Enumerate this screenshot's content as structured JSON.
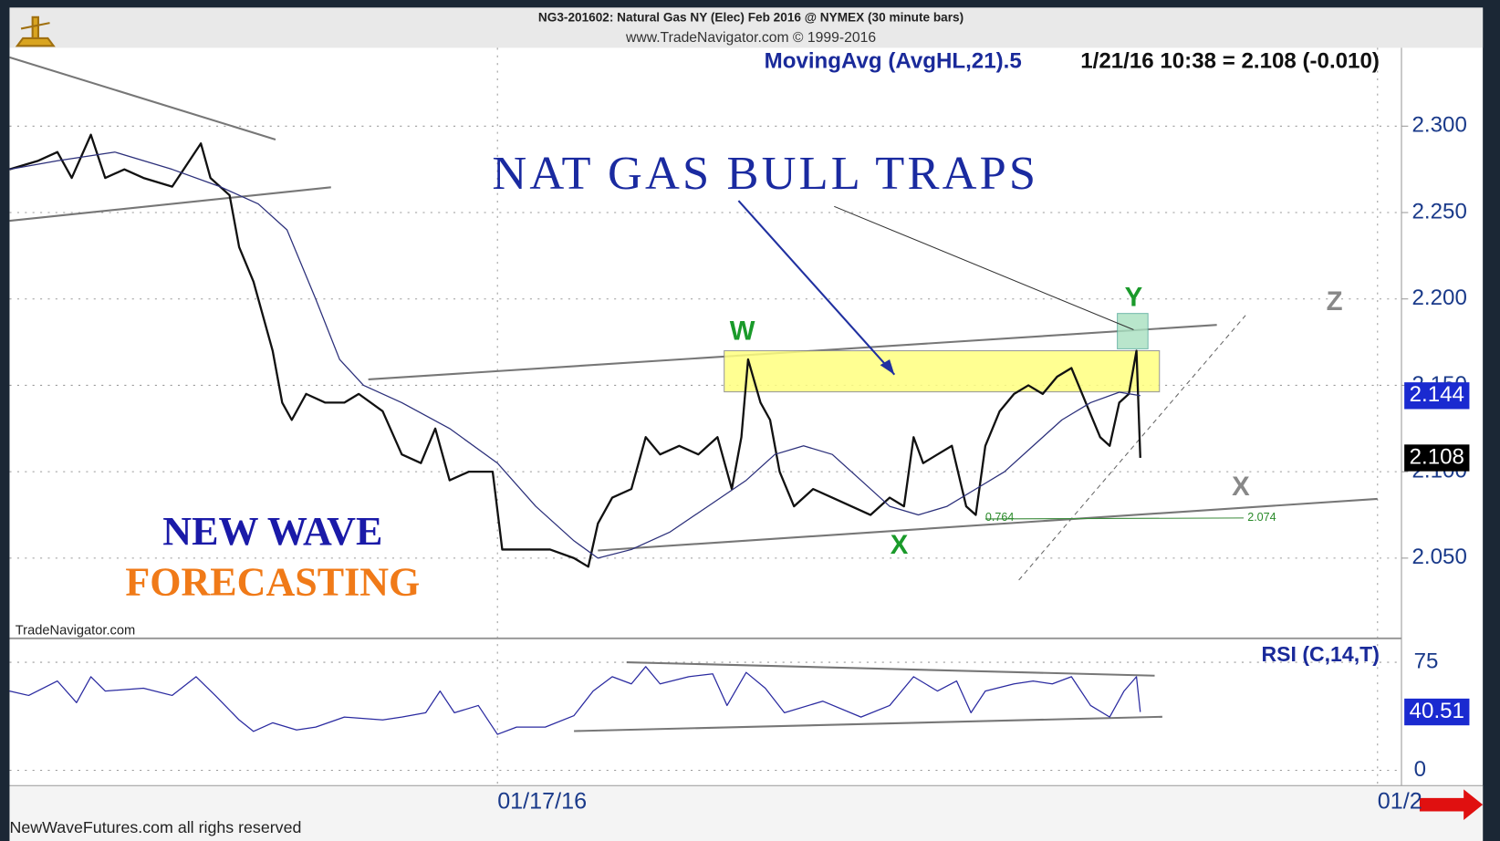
{
  "chart_data": {
    "type": "line",
    "title": "NG3-201602:  Natural Gas NY (Elec) Feb 2016 @ NYMEX  (30 minute bars)",
    "subtitle": "www.TradeNavigator.com © 1999-2016",
    "quote": "1/21/16 10:38 = 2.108 (-0.010)",
    "headline": "NAT GAS BULL TRAPS",
    "brand": [
      "NEW WAVE",
      "FORECASTING"
    ],
    "source": "TradeNavigator.com",
    "footer": "NewWaveFutures.com all righs reserved",
    "wave_labels": [
      "W",
      "X",
      "Y",
      "X",
      "Z"
    ],
    "fib_labels": [
      "0.764",
      "2.074"
    ],
    "xlim": [
      1,
      146
    ],
    "xticks": [
      {
        "value": 52,
        "label": "01/17/16"
      },
      {
        "value": 144,
        "label": "01/2"
      }
    ],
    "ylim": [
      2.0,
      2.35
    ],
    "yticks": [
      {
        "value": 2.3,
        "label": "2.300"
      },
      {
        "value": 2.25,
        "label": "2.250"
      },
      {
        "value": 2.2,
        "label": "2.200"
      },
      {
        "value": 2.15,
        "label": "2.150"
      },
      {
        "value": 2.1,
        "label": "2.100"
      },
      {
        "value": 2.05,
        "label": "2.050"
      }
    ],
    "grid": true,
    "series": [
      {
        "color": "#111111",
        "x": [
          1,
          4,
          6,
          7.5,
          9.5,
          11,
          13,
          15,
          18,
          21,
          22,
          24,
          25,
          26.5,
          27.5,
          28.5,
          29.5,
          30.5,
          32,
          34,
          36,
          37.5,
          40,
          42,
          44,
          45.5,
          47,
          49,
          51.5,
          52.5,
          55,
          57.5,
          60,
          61.5,
          62.5,
          64,
          66,
          67.5,
          69,
          71,
          73,
          75,
          76.5,
          77.5,
          78.2,
          79.5,
          80.5,
          81.5,
          83,
          85,
          87,
          89,
          91,
          93,
          94.5,
          95.5,
          96.5,
          98,
          99.5,
          101,
          102,
          103,
          104.5,
          106,
          107.5,
          109,
          110.5,
          112,
          113.5,
          115,
          116,
          117,
          118,
          118.8,
          119.2
        ],
        "values": [
          2.275,
          2.28,
          2.285,
          2.27,
          2.295,
          2.27,
          2.275,
          2.27,
          2.265,
          2.29,
          2.27,
          2.26,
          2.23,
          2.21,
          2.19,
          2.17,
          2.14,
          2.13,
          2.145,
          2.14,
          2.14,
          2.145,
          2.135,
          2.11,
          2.105,
          2.125,
          2.095,
          2.1,
          2.1,
          2.055,
          2.055,
          2.055,
          2.05,
          2.045,
          2.07,
          2.085,
          2.09,
          2.12,
          2.11,
          2.115,
          2.11,
          2.12,
          2.09,
          2.12,
          2.165,
          2.14,
          2.13,
          2.1,
          2.08,
          2.09,
          2.085,
          2.08,
          2.075,
          2.085,
          2.08,
          2.12,
          2.105,
          2.11,
          2.115,
          2.08,
          2.075,
          2.115,
          2.135,
          2.145,
          2.15,
          2.145,
          2.155,
          2.16,
          2.14,
          2.12,
          2.115,
          2.14,
          2.145,
          2.17,
          2.108
        ]
      },
      {
        "name": "MovingAvg (AvgHL,21).5",
        "color": "#2b2f7a",
        "x": [
          1,
          6,
          12,
          18,
          23,
          27,
          30,
          33,
          35.5,
          38,
          42,
          47,
          52,
          56,
          60,
          62.5,
          66,
          70,
          74,
          78,
          81,
          84,
          87,
          90,
          93,
          96,
          99,
          102,
          105,
          108,
          111,
          114,
          117,
          119.2
        ],
        "values": [
          2.275,
          2.28,
          2.285,
          2.275,
          2.265,
          2.255,
          2.24,
          2.2,
          2.165,
          2.15,
          2.14,
          2.125,
          2.105,
          2.08,
          2.06,
          2.05,
          2.055,
          2.065,
          2.08,
          2.095,
          2.11,
          2.115,
          2.11,
          2.095,
          2.08,
          2.075,
          2.08,
          2.09,
          2.1,
          2.115,
          2.13,
          2.14,
          2.146,
          2.144
        ]
      }
    ],
    "rsi": {
      "name": "RSI (C,14,T)",
      "color": "#2a2aa0",
      "ylim": [
        -10,
        90
      ],
      "yticks": [
        75,
        0
      ],
      "x": [
        1,
        3,
        6,
        8,
        9.5,
        11,
        15,
        18,
        20.5,
        22.5,
        25,
        26.5,
        28.5,
        31,
        33,
        36,
        40,
        42,
        44.5,
        46,
        47.5,
        50,
        52,
        54,
        57,
        60,
        62,
        64,
        66,
        67.5,
        69,
        72,
        74.5,
        76,
        78,
        80,
        82,
        86,
        90,
        93,
        95.5,
        98,
        100,
        101.5,
        103,
        106,
        108,
        110,
        112,
        114,
        116,
        117.5,
        118.8,
        119.2
      ],
      "values": [
        55,
        52,
        62,
        47,
        65,
        55,
        57,
        52,
        65,
        52,
        35,
        27,
        33,
        28,
        30,
        37,
        35,
        37,
        40,
        55,
        40,
        45,
        25,
        30,
        30,
        38,
        55,
        65,
        60,
        72,
        60,
        65,
        67,
        45,
        68,
        57,
        40,
        48,
        37,
        45,
        65,
        55,
        62,
        40,
        55,
        60,
        62,
        60,
        65,
        45,
        37,
        55,
        65,
        40.51
      ]
    }
  }
}
